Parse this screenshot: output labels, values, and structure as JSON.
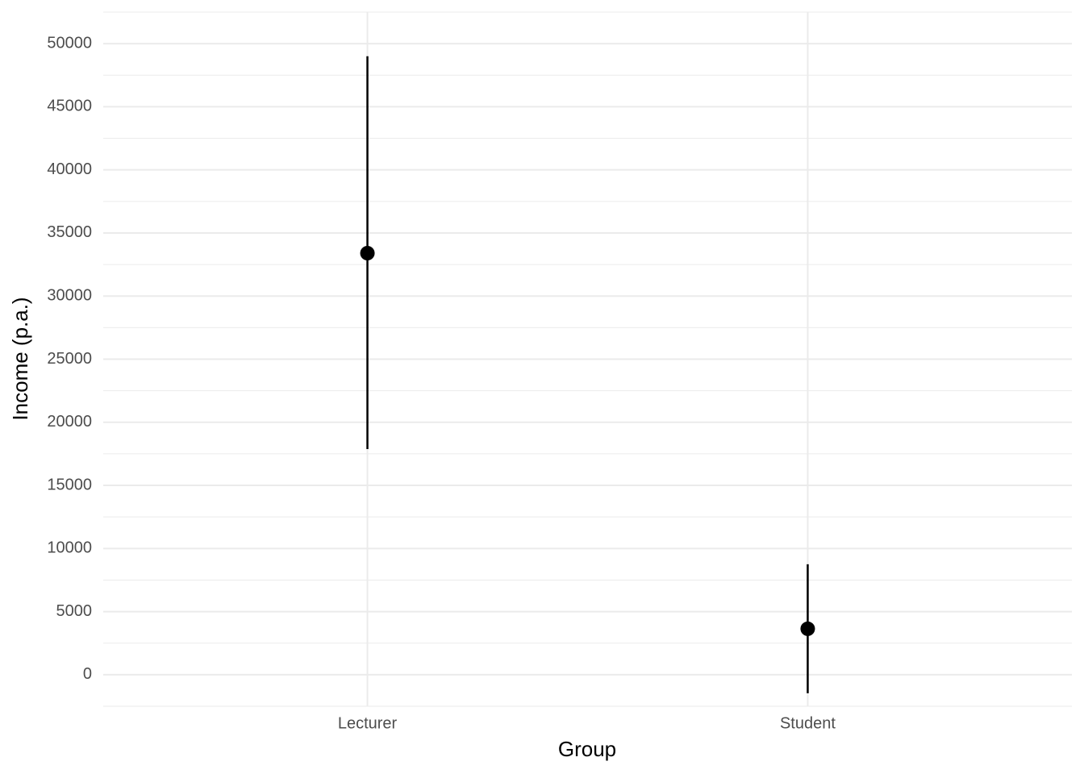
{
  "chart_data": {
    "type": "pointrange",
    "x_label": "Group",
    "y_label": "Income (p.a.)",
    "categories": [
      "Lecturer",
      "Student"
    ],
    "values": [
      33400,
      3640
    ],
    "lower": [
      17880,
      -1470
    ],
    "upper": [
      49000,
      8750
    ],
    "color": "#000000",
    "ylim": [
      -2500,
      52500
    ],
    "yticks": [
      0,
      5000,
      10000,
      15000,
      20000,
      25000,
      30000,
      35000,
      40000,
      45000,
      50000
    ],
    "grid": true
  }
}
